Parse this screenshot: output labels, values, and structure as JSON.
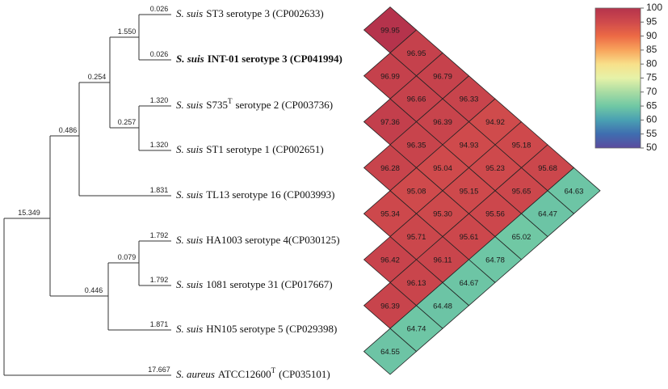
{
  "tree": {
    "leaves": [
      {
        "species": "S. suis",
        "name": "ST3 serotype 3 (CP002633)"
      },
      {
        "species": "S. suis",
        "name": "INT-01 serotype 3 (CP041994)"
      },
      {
        "species": "S. suis",
        "name": "S735",
        "sup": "T",
        "suffix": "serotype 2 (CP003736)"
      },
      {
        "species": "S. suis",
        "name": "ST1 serotype 1 (CP002651)"
      },
      {
        "species": "S. suis",
        "name": "TL13 serotype 16 (CP003993)"
      },
      {
        "species": "S. suis",
        "name": "HA1003 serotype 4(CP030125)"
      },
      {
        "species": "S. suis",
        "name": "1081 serotype 31 (CP017667)"
      },
      {
        "species": "S. suis",
        "name": "HN105 serotype 5 (CP029398)"
      },
      {
        "species": "S. aureus",
        "name": "ATCC12600",
        "sup": "T",
        "suffix": "(CP035101)"
      }
    ],
    "branch_lengths": [
      "0.026",
      "0.026",
      "1.550",
      "1.320",
      "1.320",
      "0.257",
      "0.254",
      "1.831",
      "0.486",
      "1.792",
      "1.792",
      "0.079",
      "1.871",
      "0.446",
      "15.349",
      "17.667"
    ]
  },
  "ani": {
    "rows": [
      [
        "99.95"
      ],
      [
        "96.95",
        "96.99"
      ],
      [
        "96.79",
        "96.66",
        "97.36"
      ],
      [
        "96.33",
        "96.39",
        "96.35",
        "96.28"
      ],
      [
        "94.92",
        "94.93",
        "95.04",
        "95.08",
        "95.34"
      ],
      [
        "95.18",
        "95.23",
        "95.15",
        "95.30",
        "95.71",
        "96.42"
      ],
      [
        "95.68",
        "95.65",
        "95.56",
        "95.61",
        "96.11",
        "96.13",
        "96.39"
      ],
      [
        "64.63",
        "64.47",
        "65.02",
        "64.78",
        "64.67",
        "64.48",
        "64.74",
        "64.55"
      ]
    ]
  },
  "colorbar": {
    "ticks": [
      100,
      95,
      90,
      85,
      80,
      75,
      70,
      65,
      60,
      55,
      50
    ]
  }
}
